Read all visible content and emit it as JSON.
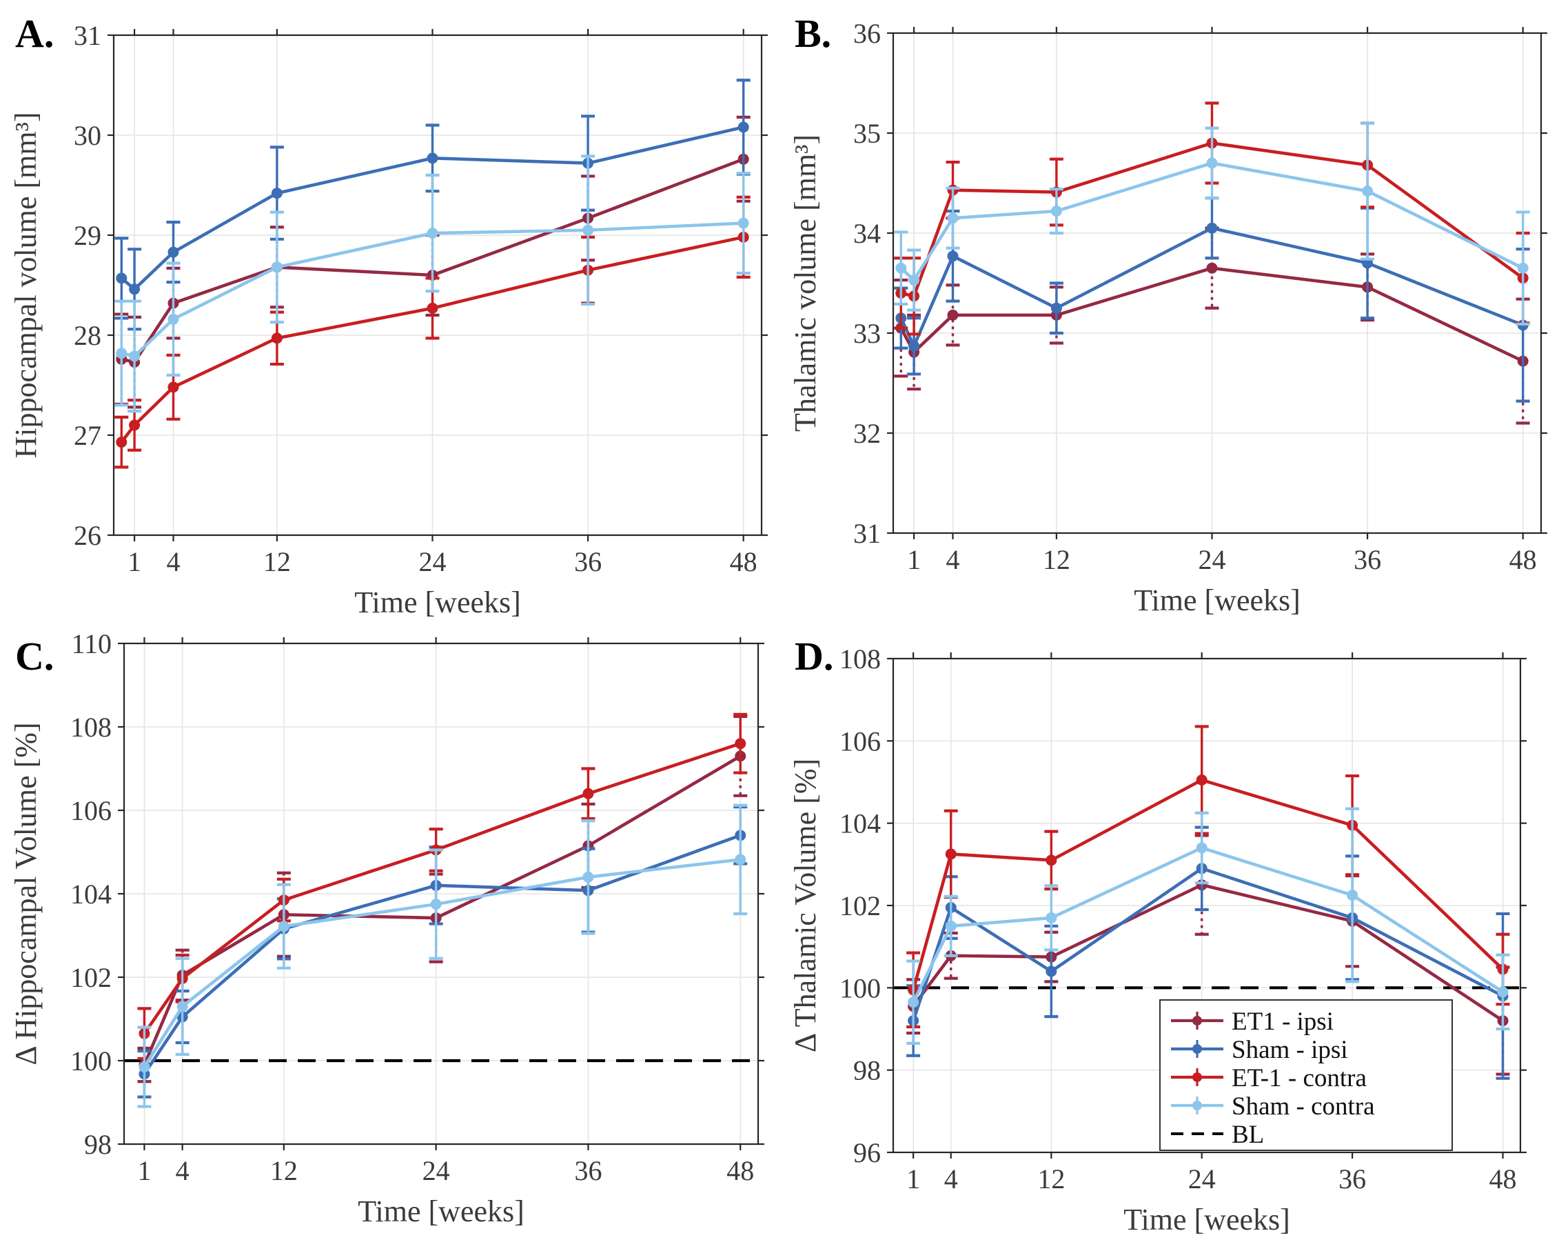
{
  "figure_title": "",
  "colors": {
    "et1_ipsi": "#942943",
    "sham_ipsi": "#3D6EB5",
    "et1_contra": "#C81E21",
    "sham_contra": "#8CC5EC",
    "baseline": "#000000",
    "grid": "#E4E4E4",
    "axis": "#262626",
    "tick_text": "#3B3B3B"
  },
  "legend": {
    "position": "bottom-right-of-panel-D",
    "entries": [
      {
        "label": "ET1 - ipsi",
        "series_key": "et1_ipsi",
        "style": "line-marker"
      },
      {
        "label": "Sham - ipsi",
        "series_key": "sham_ipsi",
        "style": "line-marker"
      },
      {
        "label": "ET-1 - contra",
        "series_key": "et1_contra",
        "style": "line-marker"
      },
      {
        "label": "Sham - contra",
        "series_key": "sham_contra",
        "style": "line-marker"
      },
      {
        "label": "BL",
        "series_key": "baseline",
        "style": "dashed-line"
      }
    ]
  },
  "chart_data": [
    {
      "panel_label": "A.",
      "type": "line",
      "title": "",
      "xlabel": "Time [weeks]",
      "ylabel": "Hippocampal volume [mm³]",
      "ylim": [
        26,
        31
      ],
      "yticks": [
        26,
        27,
        28,
        29,
        30,
        31
      ],
      "xlim": [
        -0.6,
        49.4
      ],
      "xticks": [
        1,
        4,
        12,
        24,
        36,
        48
      ],
      "x_weeks": [
        0,
        1,
        4,
        12,
        24,
        36,
        48
      ],
      "grid": true,
      "baseline_value": null,
      "series": [
        {
          "name": "ET1 - ipsi",
          "color_key": "et1_ipsi",
          "err_linestyle": "dotted",
          "values": [
            27.76,
            27.73,
            28.32,
            28.68,
            28.6,
            29.17,
            29.76
          ],
          "err": [
            0.45,
            0.45,
            0.35,
            0.4,
            0.4,
            0.42,
            0.42
          ]
        },
        {
          "name": "Sham - ipsi",
          "color_key": "sham_ipsi",
          "err_linestyle": "solid",
          "values": [
            28.57,
            28.46,
            28.83,
            29.42,
            29.77,
            29.72,
            30.08
          ],
          "err": [
            0.4,
            0.4,
            0.3,
            0.46,
            0.33,
            0.47,
            0.47
          ]
        },
        {
          "name": "ET-1 - contra",
          "color_key": "et1_contra",
          "err_linestyle": "solid",
          "values": [
            26.93,
            27.1,
            27.48,
            27.97,
            28.27,
            28.65,
            28.98
          ],
          "err": [
            0.25,
            0.25,
            0.32,
            0.26,
            0.3,
            0.33,
            0.4
          ]
        },
        {
          "name": "Sham - contra",
          "color_key": "sham_contra",
          "err_linestyle": "solid",
          "values": [
            27.82,
            27.79,
            28.16,
            28.68,
            29.02,
            29.05,
            29.12
          ],
          "err": [
            0.52,
            0.55,
            0.56,
            0.55,
            0.58,
            0.74,
            0.5
          ]
        }
      ]
    },
    {
      "panel_label": "B.",
      "type": "line",
      "title": "",
      "xlabel": "Time [weeks]",
      "ylabel": "Thalamic volume [mm³]",
      "ylim": [
        31,
        36
      ],
      "yticks": [
        31,
        32,
        33,
        34,
        35,
        36
      ],
      "xlim": [
        -0.6,
        49.4
      ],
      "xticks": [
        1,
        4,
        12,
        24,
        36,
        48
      ],
      "x_weeks": [
        0,
        1,
        4,
        12,
        24,
        36,
        48
      ],
      "grid": true,
      "baseline_value": null,
      "series": [
        {
          "name": "ET1 - ipsi",
          "color_key": "et1_ipsi",
          "err_linestyle": "dotted",
          "values": [
            33.05,
            32.81,
            33.18,
            33.18,
            33.65,
            33.46,
            32.72
          ],
          "err": [
            0.48,
            0.37,
            0.3,
            0.28,
            0.4,
            0.33,
            0.62
          ]
        },
        {
          "name": "Sham - ipsi",
          "color_key": "sham_ipsi",
          "err_linestyle": "solid",
          "values": [
            33.15,
            32.87,
            33.77,
            33.25,
            34.05,
            33.7,
            33.08
          ],
          "err": [
            0.3,
            0.28,
            0.45,
            0.25,
            0.3,
            0.55,
            0.76
          ]
        },
        {
          "name": "ET-1 - contra",
          "color_key": "et1_contra",
          "err_linestyle": "solid",
          "values": [
            33.4,
            33.37,
            34.43,
            34.41,
            34.9,
            34.68,
            33.55
          ],
          "err": [
            0.35,
            0.38,
            0.28,
            0.33,
            0.4,
            0.42,
            0.45
          ]
        },
        {
          "name": "Sham - contra",
          "color_key": "sham_contra",
          "err_linestyle": "solid",
          "values": [
            33.65,
            33.53,
            34.15,
            34.22,
            34.7,
            34.42,
            33.65
          ],
          "err": [
            0.36,
            0.3,
            0.3,
            0.22,
            0.35,
            0.68,
            0.56
          ]
        }
      ]
    },
    {
      "panel_label": "C.",
      "type": "line",
      "title": "",
      "xlabel": "Time [weeks]",
      "ylabel": "Δ Hippocampal Volume [%]",
      "ylim": [
        98,
        110
      ],
      "yticks": [
        98,
        100,
        102,
        104,
        106,
        108,
        110
      ],
      "xlim": [
        -0.6,
        49.4
      ],
      "xticks": [
        1,
        4,
        12,
        24,
        36,
        48
      ],
      "x_weeks": [
        1,
        4,
        12,
        24,
        36,
        48
      ],
      "grid": true,
      "baseline_value": 100,
      "series": [
        {
          "name": "ET1 - ipsi",
          "color_key": "et1_ipsi",
          "err_linestyle": "dotted",
          "values": [
            99.9,
            102.05,
            103.5,
            103.42,
            105.15,
            107.3
          ],
          "err": [
            0.4,
            0.6,
            1.0,
            1.05,
            1.0,
            0.95
          ]
        },
        {
          "name": "Sham - ipsi",
          "color_key": "sham_ipsi",
          "err_linestyle": "solid",
          "values": [
            99.68,
            101.05,
            103.16,
            104.2,
            104.08,
            105.4
          ],
          "err": [
            0.55,
            0.62,
            0.72,
            0.92,
            1.0,
            0.68
          ]
        },
        {
          "name": "ET-1 - contra",
          "color_key": "et1_contra",
          "err_linestyle": "solid",
          "values": [
            100.65,
            101.97,
            103.85,
            105.05,
            106.4,
            107.6
          ],
          "err": [
            0.6,
            0.56,
            0.5,
            0.5,
            0.6,
            0.7
          ]
        },
        {
          "name": "Sham - contra",
          "color_key": "sham_contra",
          "err_linestyle": "solid",
          "values": [
            99.85,
            101.3,
            103.22,
            103.75,
            104.4,
            104.82
          ],
          "err": [
            0.95,
            1.15,
            1.0,
            1.3,
            1.35,
            1.3
          ]
        }
      ]
    },
    {
      "panel_label": "D.",
      "type": "line",
      "title": "",
      "xlabel": "Time [weeks]",
      "ylabel": "Δ Thalamic Volume [%]",
      "ylim": [
        96,
        108
      ],
      "yticks": [
        96,
        98,
        100,
        102,
        104,
        106,
        108
      ],
      "xlim": [
        -0.6,
        49.4
      ],
      "xticks": [
        1,
        4,
        12,
        24,
        36,
        48
      ],
      "x_weeks": [
        1,
        4,
        12,
        24,
        36,
        48
      ],
      "grid": true,
      "baseline_value": 100,
      "has_legend": true,
      "series": [
        {
          "name": "ET1 - ipsi",
          "color_key": "et1_ipsi",
          "err_linestyle": "dotted",
          "values": [
            99.55,
            100.78,
            100.75,
            102.5,
            101.62,
            99.2
          ],
          "err": [
            0.65,
            0.55,
            0.6,
            1.2,
            1.1,
            1.3
          ]
        },
        {
          "name": "Sham - ipsi",
          "color_key": "sham_ipsi",
          "err_linestyle": "solid",
          "values": [
            99.2,
            101.95,
            100.4,
            102.9,
            101.7,
            99.8
          ],
          "err": [
            0.85,
            0.75,
            1.1,
            1.0,
            1.5,
            2.0
          ]
        },
        {
          "name": "ET-1 - contra",
          "color_key": "et1_contra",
          "err_linestyle": "solid",
          "values": [
            99.95,
            103.25,
            103.1,
            105.05,
            103.95,
            100.45
          ],
          "err": [
            0.9,
            1.05,
            0.7,
            1.3,
            1.2,
            0.85
          ]
        },
        {
          "name": "Sham - contra",
          "color_key": "sham_contra",
          "err_linestyle": "solid",
          "values": [
            99.65,
            101.5,
            101.7,
            103.4,
            102.25,
            99.9
          ],
          "err": [
            1.0,
            0.72,
            0.78,
            0.85,
            2.1,
            0.9
          ]
        }
      ]
    }
  ]
}
